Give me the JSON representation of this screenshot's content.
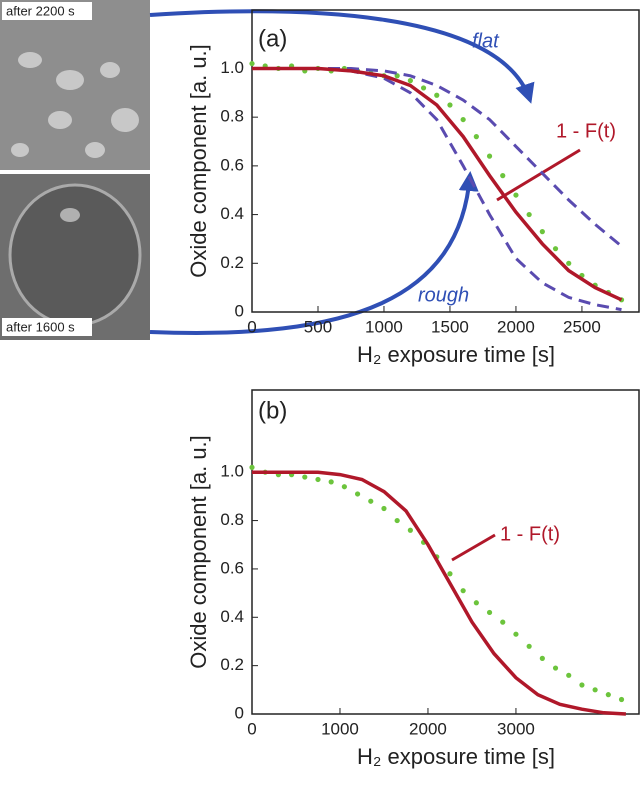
{
  "images": [
    {
      "label": "after 2200 s"
    },
    {
      "label": "after 1600 s"
    }
  ],
  "chart_data": [
    {
      "type": "line",
      "title": "(a)",
      "xlabel": "H₂ exposure time [s]",
      "ylabel": "Oxide component [a. u.]",
      "xlim": [
        0,
        2940
      ],
      "ylim": [
        0,
        1.24
      ],
      "xticks": [
        0,
        500,
        1000,
        1500,
        2000,
        2500
      ],
      "yticks": [
        0,
        0.2,
        0.4,
        0.6,
        0.8,
        {
          "value": 1,
          "label": "1.0"
        }
      ],
      "annotations": [
        "flat",
        "rough",
        "1 - F(t)"
      ],
      "series": [
        {
          "style": "markers",
          "color": "#6cc43c",
          "x": [
            0,
            100,
            200,
            300,
            400,
            500,
            600,
            700,
            800,
            900,
            1000,
            1100,
            1200,
            1300,
            1400,
            1500,
            1600,
            1700,
            1800,
            1900,
            2000,
            2100,
            2200,
            2300,
            2400,
            2500,
            2600,
            2700,
            2800
          ],
          "values": [
            1.02,
            1.01,
            1.0,
            1.01,
            0.99,
            1.0,
            0.99,
            1.0,
            0.99,
            0.98,
            0.97,
            0.97,
            0.95,
            0.92,
            0.89,
            0.85,
            0.79,
            0.72,
            0.64,
            0.56,
            0.48,
            0.4,
            0.33,
            0.26,
            0.2,
            0.15,
            0.11,
            0.08,
            0.05
          ]
        },
        {
          "style": "dashed",
          "color": "#5a4bb0",
          "x": [
            0,
            250,
            500,
            750,
            1000,
            1200,
            1400,
            1600,
            1800,
            2000,
            2200,
            2400,
            2600,
            2800
          ],
          "values": [
            1,
            1,
            1,
            1,
            0.99,
            0.97,
            0.93,
            0.87,
            0.79,
            0.68,
            0.57,
            0.46,
            0.36,
            0.27
          ]
        },
        {
          "style": "dashed",
          "color": "#5a4bb0",
          "x": [
            0,
            250,
            500,
            750,
            1000,
            1200,
            1400,
            1600,
            1800,
            2000,
            2200,
            2400,
            2600,
            2800
          ],
          "values": [
            1,
            1,
            1,
            0.99,
            0.96,
            0.9,
            0.79,
            0.6,
            0.4,
            0.22,
            0.12,
            0.06,
            0.03,
            0.01
          ]
        },
        {
          "style": "solid",
          "color": "#b0182a",
          "x": [
            0,
            250,
            500,
            750,
            1000,
            1200,
            1400,
            1600,
            1800,
            2000,
            2200,
            2400,
            2600,
            2800
          ],
          "values": [
            1,
            1,
            1,
            0.99,
            0.97,
            0.93,
            0.85,
            0.72,
            0.56,
            0.41,
            0.28,
            0.17,
            0.1,
            0.05
          ]
        }
      ]
    },
    {
      "type": "line",
      "title": "(b)",
      "xlabel": "H₂ exposure time [s]",
      "ylabel": "Oxide component [a. u.]",
      "xlim": [
        0,
        4410
      ],
      "ylim": [
        0,
        1.34
      ],
      "xticks": [
        0,
        1000,
        2000,
        3000
      ],
      "yticks": [
        0,
        0.2,
        0.4,
        0.6,
        0.8,
        {
          "value": 1,
          "label": "1.0"
        }
      ],
      "annotations": [
        "1 - F(t)"
      ],
      "series": [
        {
          "style": "markers",
          "color": "#6cc43c",
          "x": [
            0,
            150,
            300,
            450,
            600,
            750,
            900,
            1050,
            1200,
            1350,
            1500,
            1650,
            1800,
            1950,
            2100,
            2250,
            2400,
            2550,
            2700,
            2850,
            3000,
            3150,
            3300,
            3450,
            3600,
            3750,
            3900,
            4050,
            4200
          ],
          "values": [
            1.02,
            1.0,
            0.99,
            0.99,
            0.98,
            0.97,
            0.96,
            0.94,
            0.91,
            0.88,
            0.85,
            0.8,
            0.76,
            0.71,
            0.65,
            0.58,
            0.51,
            0.46,
            0.42,
            0.38,
            0.33,
            0.28,
            0.23,
            0.19,
            0.16,
            0.12,
            0.1,
            0.08,
            0.06
          ]
        },
        {
          "style": "solid",
          "color": "#b0182a",
          "x": [
            0,
            250,
            500,
            750,
            1000,
            1250,
            1500,
            1750,
            2000,
            2250,
            2500,
            2750,
            3000,
            3250,
            3500,
            3750,
            4000,
            4250
          ],
          "values": [
            1,
            1,
            1,
            1,
            0.99,
            0.97,
            0.92,
            0.84,
            0.7,
            0.54,
            0.38,
            0.25,
            0.15,
            0.08,
            0.04,
            0.02,
            0.005,
            0
          ]
        }
      ]
    }
  ]
}
